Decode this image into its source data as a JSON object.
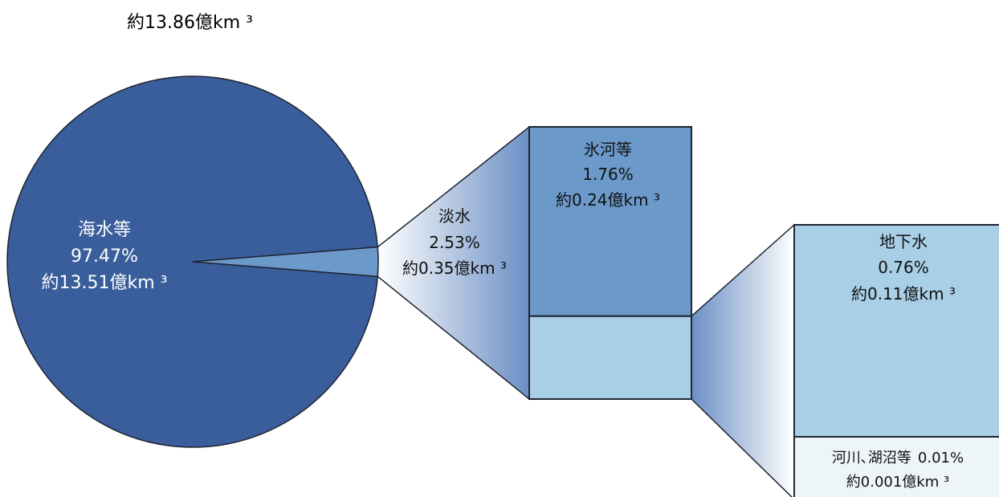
{
  "chart_data": {
    "type": "pie",
    "total_label": "約13.86億km ³",
    "colors": {
      "seawater": "#3a5e9c",
      "freshwater": "#6b99c9",
      "glacier": "#6b99c9",
      "groundwater_box": "#a9cfe6",
      "groundwater": "#a9cfe6",
      "rivers": "#eef5f9",
      "funnel_dark": "#6b8fc4",
      "funnel_light": "#ffffff",
      "border": "#1f2430"
    },
    "slices": [
      {
        "key": "seawater",
        "name": "海水等",
        "percent": 97.47,
        "pct_label": "97.47%",
        "volume_label": "約13.51億km ³"
      },
      {
        "key": "freshwater",
        "name": "淡水",
        "percent": 2.53,
        "pct_label": "2.53%",
        "volume_label": "約0.35億km ³"
      }
    ],
    "freshwater_breakdown": [
      {
        "key": "glacier",
        "name": "氷河等",
        "percent": 1.76,
        "pct_label": "1.76%",
        "volume_label": "約0.24億km ³"
      },
      {
        "key": "groundwater_box",
        "percent": 0.77
      }
    ],
    "groundwater_breakdown": [
      {
        "key": "groundwater",
        "name": "地下水",
        "percent": 0.76,
        "pct_label": "0.76%",
        "volume_label": "約0.11億km ³"
      },
      {
        "key": "rivers",
        "name": "河川､湖沼等",
        "percent": 0.01,
        "pct_label": "0.01%",
        "volume_label": "約0.001億km ³"
      }
    ]
  }
}
